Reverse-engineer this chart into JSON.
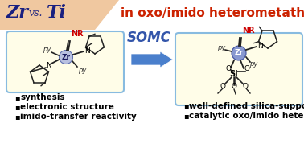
{
  "title_zr": "Zr",
  "title_vs": "vs.",
  "title_ti": "Ti",
  "title_sub": "in oxo/imido heterometathesis",
  "arrow_label": "SOMC",
  "bullet_left": [
    "synthesis",
    "electronic structure",
    "imido-transfer reactivity"
  ],
  "bullet_right": [
    "well-defined silica-supported species",
    "catalytic oxo/imido heterometathesis"
  ],
  "bg_color": "#ffffff",
  "header_bg": "#f0c8a0",
  "box_fill": "#fffde8",
  "box_stroke": "#88bbe0",
  "zr_color_left": "#b8c0e0",
  "zr_color_right": "#8898d0",
  "nr_color": "#cc0000",
  "bond_color": "#222222",
  "title_zr_color": "#1a2080",
  "title_ti_color": "#1a2080",
  "title_vs_color": "#1a2080",
  "sub_color": "#cc2200",
  "arrow_fill": "#4a7fcc",
  "somc_color": "#3355aa",
  "bullet_color": "#000000",
  "py_color": "#333333",
  "N_color": "#000000",
  "font_size_title": 16,
  "font_size_sub": 11,
  "font_size_bullet": 7.5,
  "font_size_arrow": 12,
  "font_size_struct": 6.5,
  "font_size_nr": 7
}
